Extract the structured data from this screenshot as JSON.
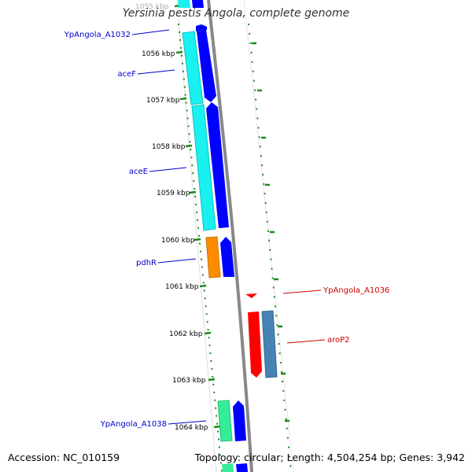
{
  "title": "Yersinia pestis Angola, complete genome",
  "footer": {
    "accession": "Accession: NC_010159",
    "topology": "Topology: circular; Length: 4,504,254 bp; Genes: 3,942"
  },
  "ticks": [
    {
      "label": "1055 kbp",
      "faded": true
    },
    {
      "label": "1056 kbp"
    },
    {
      "label": "1057 kbp"
    },
    {
      "label": "1058 kbp"
    },
    {
      "label": "1059 kbp"
    },
    {
      "label": "1060 kbp"
    },
    {
      "label": "1061 kbp"
    },
    {
      "label": "1062 kbp"
    },
    {
      "label": "1063 kbp"
    },
    {
      "label": "1064 kbp"
    }
  ],
  "gene_labels": {
    "ypangola_a1032": "YpAngola_A1032",
    "acef": "aceF",
    "acee": "aceE",
    "pdhr": "pdhR",
    "ypangola_a1036": "YpAngola_A1036",
    "arop2": "aroP2",
    "ypangola_a1038": "YpAngola_A1038"
  },
  "colors": {
    "backbone": "#888888",
    "tick_green": "#1a8a1a",
    "forward_label": "#0000cc",
    "reverse_label": "#cc0000",
    "cyan": "#19f0f0",
    "blue": "#0000ff",
    "orange": "#ff8c00",
    "red": "#ff0000",
    "steelblue": "#4682b4",
    "mint": "#33ee99"
  }
}
